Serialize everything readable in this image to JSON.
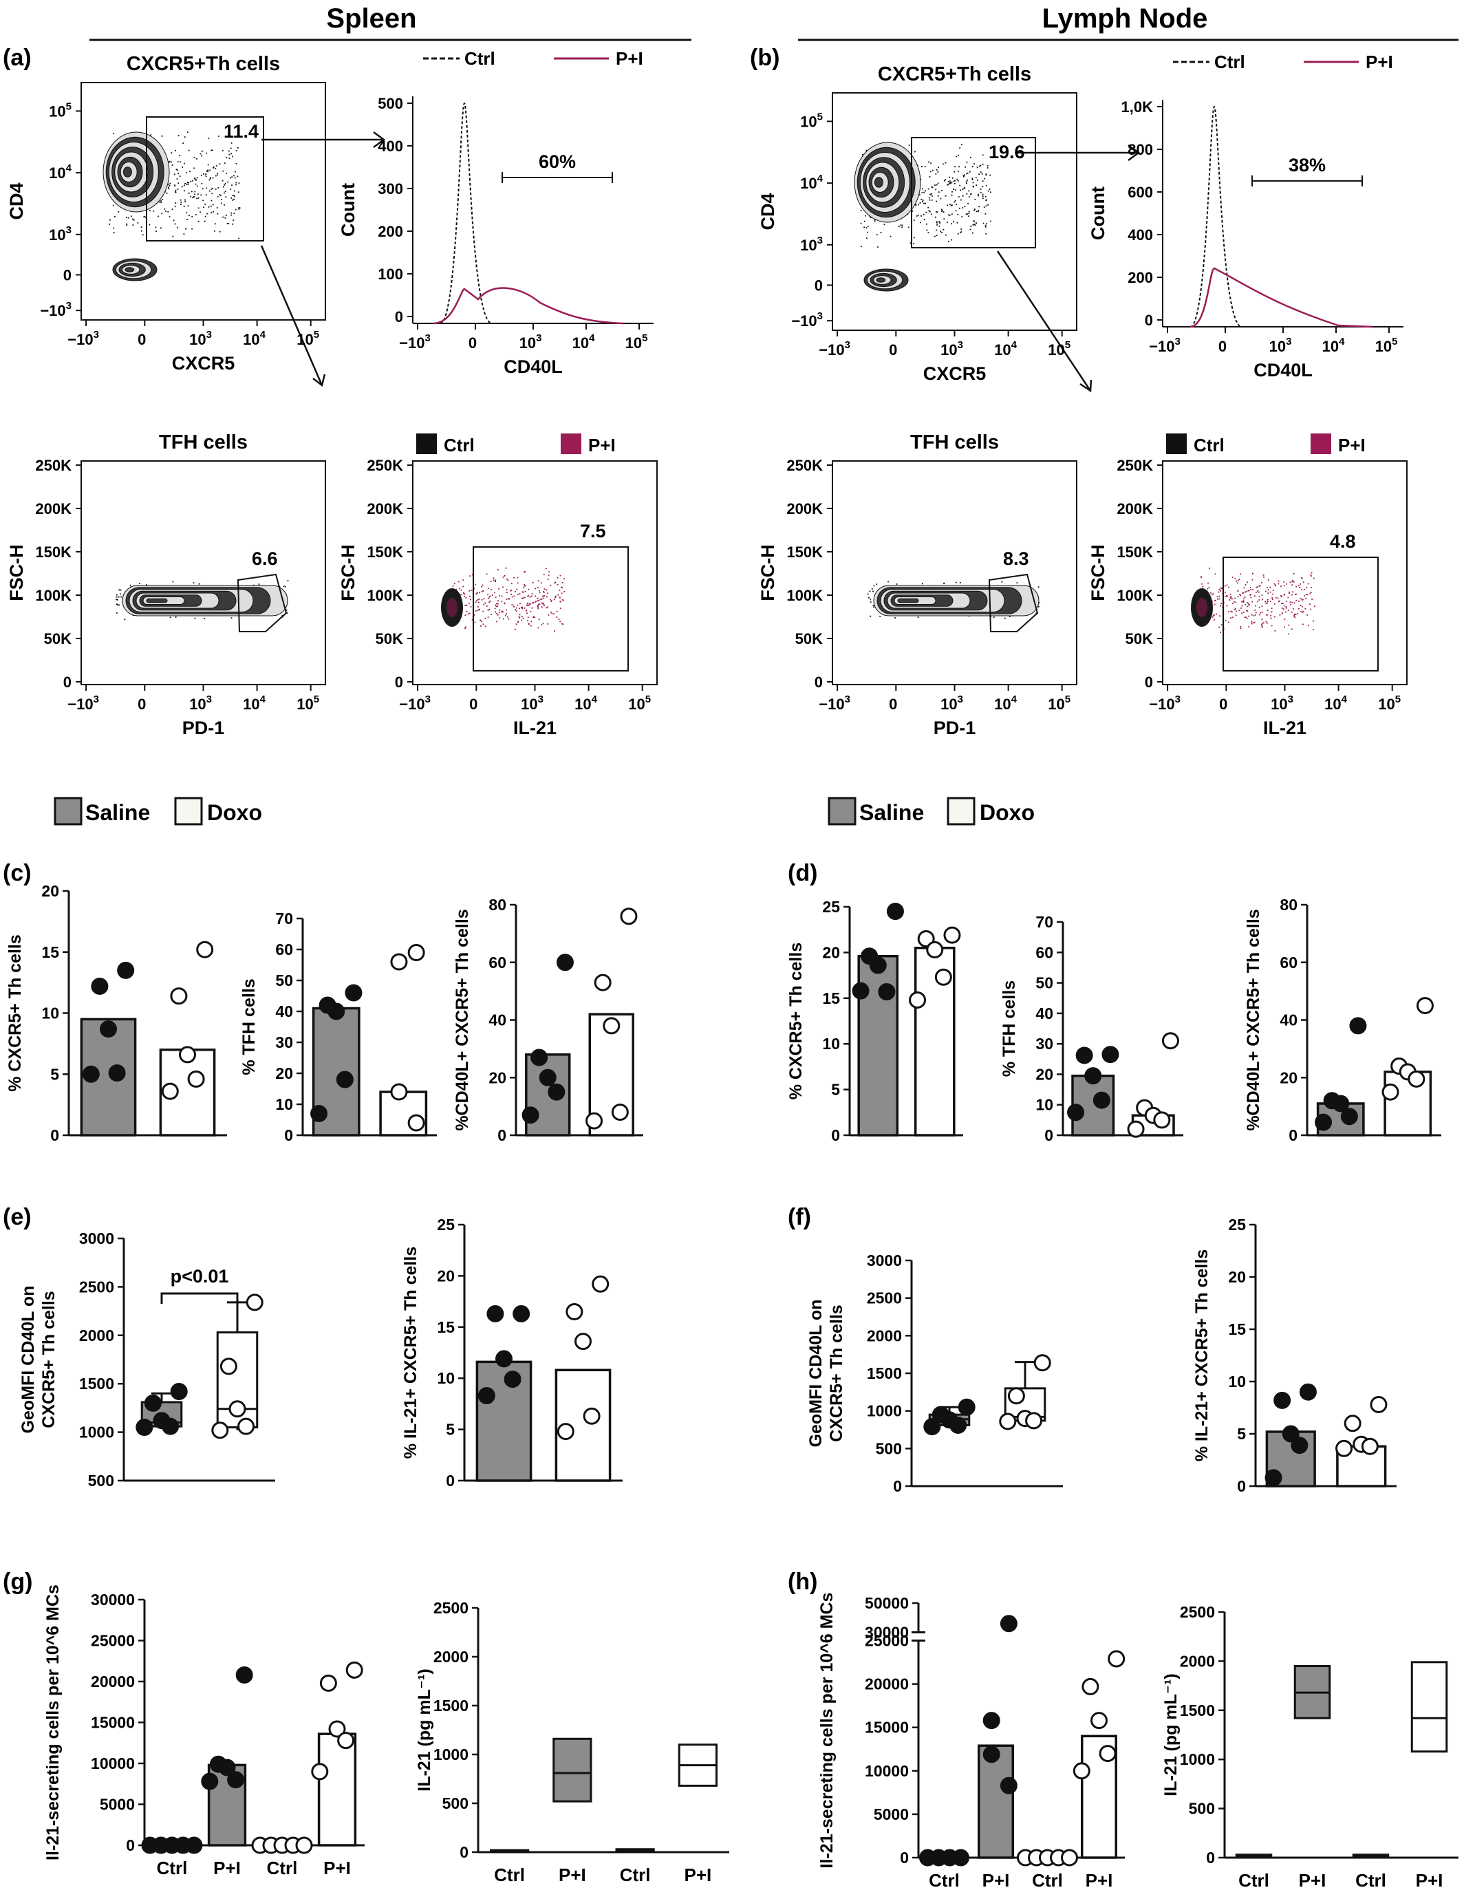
{
  "header": {
    "spleen": "Spleen",
    "lymph_node": "Lymph Node"
  },
  "panel_letters": [
    "(a)",
    "(b)",
    "(c)",
    "(d)",
    "(e)",
    "(f)",
    "(g)",
    "(h)"
  ],
  "colors": {
    "saline": "#8c8c8c",
    "doxo": "#f7f7f2",
    "pi": "#9b1b55",
    "ctrl": "#111111",
    "axis": "#111111"
  },
  "legends": {
    "hist_ctrl": "Ctrl",
    "hist_pi": "P+I",
    "scatter_ctrl": "Ctrl",
    "scatter_pi": "P+I",
    "saline": "Saline",
    "doxo": "Doxo"
  },
  "flow": {
    "spleen": {
      "cxcr5_plot": {
        "title": "CXCR5+Th cells",
        "xlabel": "CXCR5",
        "ylabel": "CD4",
        "gate": "11.4"
      },
      "hist": {
        "xlabel": "CD40L",
        "ylabel": "Count",
        "gate": "60%",
        "yticks": [
          "0",
          "100",
          "200",
          "300",
          "400",
          "500"
        ]
      },
      "tfh_plot": {
        "title": "TFH cells",
        "xlabel": "PD-1",
        "ylabel": "FSC-H",
        "gate": "6.6"
      },
      "il21_plot": {
        "xlabel": "IL-21",
        "ylabel": "FSC-H",
        "gate": "7.5"
      }
    },
    "lymph": {
      "cxcr5_plot": {
        "title": "CXCR5+Th cells",
        "xlabel": "CXCR5",
        "ylabel": "CD4",
        "gate": "19.6"
      },
      "hist": {
        "xlabel": "CD40L",
        "ylabel": "Count",
        "gate": "38%",
        "yticks": [
          "0",
          "200",
          "400",
          "600",
          "800",
          "1,0K"
        ]
      },
      "tfh_plot": {
        "title": "TFH cells",
        "xlabel": "PD-1",
        "ylabel": "FSC-H",
        "gate": "8.3"
      },
      "il21_plot": {
        "xlabel": "IL-21",
        "ylabel": "FSC-H",
        "gate": "4.8"
      }
    },
    "log_ticks": {
      "neg": "−10",
      "zero": "0",
      "p3": "10",
      "p4": "10",
      "p5": "10",
      "exp3": "3",
      "exp4": "4",
      "exp5": "5"
    },
    "fsc_ticks": [
      "0",
      "50K",
      "100K",
      "150K",
      "200K",
      "250K"
    ]
  },
  "chart_data": [
    {
      "id": "c1",
      "type": "bar",
      "ylabel": "% CXCR5+ Th cells",
      "ylim": [
        0,
        20
      ],
      "yticks": [
        0,
        5,
        10,
        15,
        20
      ],
      "series": [
        {
          "name": "Saline",
          "mean": 9.5,
          "points": [
            13.5,
            12.2,
            8.7,
            5.1,
            5.0
          ]
        },
        {
          "name": "Doxo",
          "mean": 7.0,
          "points": [
            15.2,
            11.4,
            6.6,
            4.6,
            3.6
          ]
        }
      ]
    },
    {
      "id": "c2",
      "type": "bar",
      "ylabel": "% TFH cells",
      "ylim": [
        0,
        70
      ],
      "yticks": [
        0,
        10,
        20,
        30,
        40,
        50,
        60,
        70
      ],
      "series": [
        {
          "name": "Saline",
          "mean": 41,
          "points": [
            46,
            42,
            40,
            18,
            7
          ]
        },
        {
          "name": "Doxo",
          "mean": 14,
          "points": [
            59,
            56,
            14,
            4
          ]
        }
      ]
    },
    {
      "id": "c3",
      "type": "bar",
      "ylabel": "%CD40L+ CXCR5+ Th cells",
      "ylim": [
        0,
        80
      ],
      "yticks": [
        0,
        20,
        40,
        60,
        80
      ],
      "series": [
        {
          "name": "Saline",
          "mean": 28,
          "points": [
            60,
            27,
            20,
            15,
            7
          ]
        },
        {
          "name": "Doxo",
          "mean": 42,
          "points": [
            76,
            53,
            38,
            8,
            5
          ]
        }
      ]
    },
    {
      "id": "d1",
      "type": "bar",
      "ylabel": "% CXCR5+ Th cells",
      "ylim": [
        0,
        25
      ],
      "yticks": [
        0,
        5,
        10,
        15,
        20,
        25
      ],
      "series": [
        {
          "name": "Saline",
          "mean": 19.6,
          "points": [
            24.5,
            19.6,
            18.6,
            15.7,
            15.8
          ]
        },
        {
          "name": "Doxo",
          "mean": 20.5,
          "points": [
            21.9,
            21.5,
            20.3,
            17.3,
            14.8
          ]
        }
      ]
    },
    {
      "id": "d2",
      "type": "bar",
      "ylabel": "% TFH cells",
      "ylim": [
        0,
        70
      ],
      "yticks": [
        0,
        10,
        20,
        30,
        40,
        50,
        60,
        70
      ],
      "series": [
        {
          "name": "Saline",
          "mean": 19.5,
          "points": [
            26.5,
            26.2,
            19.5,
            11.5,
            7.5
          ]
        },
        {
          "name": "Doxo",
          "mean": 6.5,
          "points": [
            31,
            9,
            6.5,
            5,
            2
          ]
        }
      ]
    },
    {
      "id": "d3",
      "type": "bar",
      "ylabel": "%CD40L+ CXCR5+ Th cells",
      "ylim": [
        0,
        80
      ],
      "yticks": [
        0,
        20,
        40,
        60,
        80
      ],
      "series": [
        {
          "name": "Saline",
          "mean": 11,
          "points": [
            38,
            12,
            11,
            6.5,
            4.5
          ]
        },
        {
          "name": "Doxo",
          "mean": 22,
          "points": [
            45,
            24,
            22,
            19.5,
            15
          ]
        }
      ]
    },
    {
      "id": "e1",
      "type": "box",
      "ylabel": "GeoMFI CD40L on CXCR5+ Th cells",
      "ylim": [
        500,
        3000
      ],
      "yticks": [
        500,
        1000,
        1500,
        2000,
        2500,
        3000
      ],
      "annotation": "p<0.01",
      "series": [
        {
          "name": "Saline",
          "min": 1050,
          "q1": 1060,
          "median": 1100,
          "q3": 1310,
          "max": 1400,
          "points": [
            1420,
            1300,
            1120,
            1060,
            1050
          ]
        },
        {
          "name": "Doxo",
          "min": 1020,
          "q1": 1050,
          "median": 1240,
          "q3": 2030,
          "max": 2340,
          "points": [
            2340,
            1680,
            1240,
            1060,
            1020
          ]
        }
      ]
    },
    {
      "id": "e2",
      "type": "bar",
      "ylabel": "% IL-21+ CXCR5+ Th cells",
      "ylim": [
        0,
        25
      ],
      "yticks": [
        0,
        5,
        10,
        15,
        20,
        25
      ],
      "series": [
        {
          "name": "Saline",
          "mean": 11.6,
          "points": [
            16.3,
            16.3,
            11.9,
            9.9,
            8.3
          ]
        },
        {
          "name": "Doxo",
          "mean": 10.8,
          "points": [
            19.2,
            16.5,
            13.6,
            6.3,
            4.8
          ]
        }
      ]
    },
    {
      "id": "f1",
      "type": "box",
      "ylabel": "GeoMFI CD40L on CXCR5+ Th cells",
      "ylim": [
        0,
        3000
      ],
      "yticks": [
        0,
        500,
        1000,
        1500,
        2000,
        2500,
        3000
      ],
      "series": [
        {
          "name": "Saline",
          "min": 790,
          "q1": 810,
          "median": 890,
          "q3": 950,
          "max": 1050,
          "points": [
            1050,
            950,
            880,
            810,
            790
          ]
        },
        {
          "name": "Doxo",
          "min": 860,
          "q1": 870,
          "median": 920,
          "q3": 1300,
          "max": 1650,
          "points": [
            1640,
            1200,
            900,
            870,
            860
          ]
        }
      ]
    },
    {
      "id": "f2",
      "type": "bar",
      "ylabel": "% IL-21+ CXCR5+ Th cells",
      "ylim": [
        0,
        25
      ],
      "yticks": [
        0,
        5,
        10,
        15,
        20,
        25
      ],
      "series": [
        {
          "name": "Saline",
          "mean": 5.2,
          "points": [
            9.0,
            8.2,
            5.0,
            3.9,
            0.8
          ]
        },
        {
          "name": "Doxo",
          "mean": 3.8,
          "points": [
            7.8,
            6.0,
            4.0,
            3.8,
            3.6
          ]
        }
      ]
    },
    {
      "id": "g1",
      "type": "bar",
      "ylabel": "Il-21-secreting cells per 10^6 MCs",
      "ylim": [
        0,
        30000
      ],
      "yticks": [
        0,
        5000,
        10000,
        15000,
        20000,
        25000,
        30000
      ],
      "categories": [
        "Ctrl",
        "P+I",
        "Ctrl",
        "P+I"
      ],
      "series": [
        {
          "name": "Saline Ctrl",
          "mean": 0,
          "points": [
            0,
            0,
            0,
            0,
            0
          ]
        },
        {
          "name": "Saline P+I",
          "mean": 9800,
          "points": [
            20800,
            9900,
            9500,
            8000,
            7800
          ]
        },
        {
          "name": "Doxo Ctrl",
          "mean": 0,
          "points": [
            0,
            0,
            0,
            0,
            0
          ]
        },
        {
          "name": "Doxo P+I",
          "mean": 13600,
          "points": [
            21400,
            19800,
            14200,
            12800,
            9000
          ]
        }
      ]
    },
    {
      "id": "g2",
      "type": "box",
      "ylabel": "IL-21 (pg mL⁻¹)",
      "ylim": [
        0,
        2500
      ],
      "yticks": [
        0,
        500,
        1000,
        1500,
        2000,
        2500
      ],
      "categories": [
        "Ctrl",
        "P+I",
        "Ctrl",
        "P+I"
      ],
      "series": [
        {
          "name": "Saline Ctrl",
          "q1": 10,
          "median": 15,
          "q3": 20
        },
        {
          "name": "Saline P+I",
          "q1": 520,
          "median": 810,
          "q3": 1160
        },
        {
          "name": "Doxo Ctrl",
          "q1": 20,
          "median": 25,
          "q3": 30
        },
        {
          "name": "Doxo P+I",
          "q1": 680,
          "median": 890,
          "q3": 1100
        }
      ]
    },
    {
      "id": "h1",
      "type": "bar",
      "ylabel": "Il-21-secreting cells per 10^6 MCs",
      "ylim": [
        0,
        50000
      ],
      "yticks": [
        0,
        5000,
        10000,
        15000,
        20000,
        25000,
        30000,
        50000
      ],
      "axis_break": [
        25000,
        30000
      ],
      "categories": [
        "Ctrl",
        "P+I",
        "Ctrl",
        "P+I"
      ],
      "series": [
        {
          "name": "Saline Ctrl",
          "mean": 0,
          "points": [
            0,
            0,
            0,
            0
          ]
        },
        {
          "name": "Saline P+I",
          "mean": 12900,
          "points": [
            36000,
            15800,
            11900,
            8300
          ]
        },
        {
          "name": "Doxo Ctrl",
          "mean": 0,
          "points": [
            0,
            0,
            0,
            0,
            0
          ]
        },
        {
          "name": "Doxo P+I",
          "mean": 14000,
          "points": [
            22900,
            19700,
            15800,
            12000,
            10000
          ]
        }
      ]
    },
    {
      "id": "h2",
      "type": "box",
      "ylabel": "IL-21 (pg mL⁻¹)",
      "ylim": [
        0,
        2500
      ],
      "yticks": [
        0,
        500,
        1000,
        1500,
        2000,
        2500
      ],
      "categories": [
        "Ctrl",
        "P+I",
        "Ctrl",
        "P+I"
      ],
      "series": [
        {
          "name": "Saline Ctrl",
          "q1": 20,
          "median": 25,
          "q3": 30
        },
        {
          "name": "Saline P+I",
          "q1": 1420,
          "median": 1680,
          "q3": 1950
        },
        {
          "name": "Doxo Ctrl",
          "q1": 20,
          "median": 25,
          "q3": 30
        },
        {
          "name": "Doxo P+I",
          "q1": 1080,
          "median": 1420,
          "q3": 1990
        }
      ]
    }
  ]
}
